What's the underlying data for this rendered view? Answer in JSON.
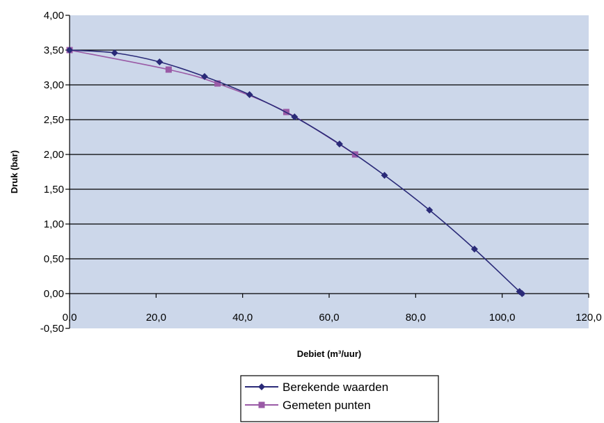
{
  "chart_data": {
    "type": "line",
    "title": "",
    "xlabel": "Debiet (m³/uur)",
    "ylabel": "Druk (bar)",
    "xlim": [
      0,
      120
    ],
    "ylim": [
      -0.5,
      4
    ],
    "x_ticks": [
      "0,0",
      "20,0",
      "40,0",
      "60,0",
      "80,0",
      "100,0",
      "120,0"
    ],
    "y_ticks": [
      "4,00",
      "3,50",
      "3,00",
      "2,50",
      "2,00",
      "1,50",
      "1,00",
      "0,50",
      "0,00",
      "-0,50"
    ],
    "grid": "horizontal",
    "legend_position": "bottom",
    "plot_background": "#ccd7ea",
    "series": [
      {
        "name": "Berekende waarden",
        "color": "#2a2a78",
        "marker": "diamond",
        "points": [
          [
            0.0,
            3.5
          ],
          [
            10.4,
            3.46
          ],
          [
            20.8,
            3.33
          ],
          [
            31.2,
            3.12
          ],
          [
            41.6,
            2.86
          ],
          [
            52.0,
            2.54
          ],
          [
            62.4,
            2.15
          ],
          [
            72.8,
            1.7
          ],
          [
            83.2,
            1.2
          ],
          [
            93.6,
            0.64
          ],
          [
            104.0,
            0.03
          ],
          [
            104.6,
            0.0
          ]
        ]
      },
      {
        "name": "Gemeten punten",
        "color": "#9a5aa6",
        "marker": "square",
        "points": [
          [
            0.0,
            3.5
          ],
          [
            22.9,
            3.22
          ],
          [
            34.2,
            3.02
          ],
          [
            50.1,
            2.61
          ],
          [
            66.0,
            2.0
          ]
        ]
      }
    ]
  }
}
